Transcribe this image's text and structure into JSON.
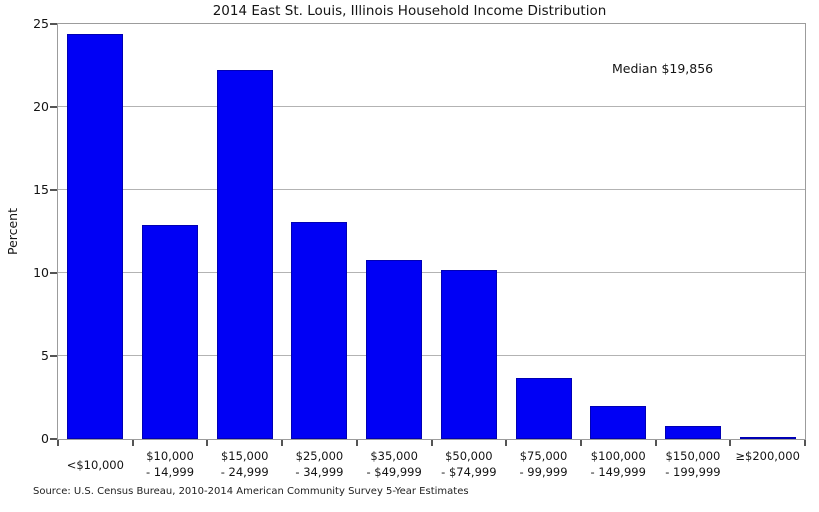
{
  "chart_data": {
    "type": "bar",
    "title": "2014 East St. Louis, Illinois Household Income Distribution",
    "xlabel": "",
    "ylabel": "Percent",
    "ylim": [
      0,
      25
    ],
    "yticks": [
      0,
      5,
      10,
      15,
      20,
      25
    ],
    "grid": "horizontal gridlines at yticks, drawn behind bars",
    "legend": "none",
    "bar_color": "#0000f5",
    "annotation": "Median $19,856",
    "annotation_position": "upper-right",
    "categories": [
      "<$10,000",
      "$10,000\n- 14,999",
      "$15,000\n- 24,999",
      "$25,000\n- 34,999",
      "$35,000\n- $49,999",
      "$50,000\n- $74,999",
      "$75,000\n- 99,999",
      "$100,000\n- 149,999",
      "$150,000\n- 199,999",
      "≥$200,000"
    ],
    "values": [
      24.4,
      12.9,
      22.2,
      13.1,
      10.8,
      10.2,
      3.7,
      2.0,
      0.8,
      0.1
    ],
    "source": "Source: U.S. Census Bureau, 2010-2014 American Community Survey 5-Year Estimates"
  }
}
